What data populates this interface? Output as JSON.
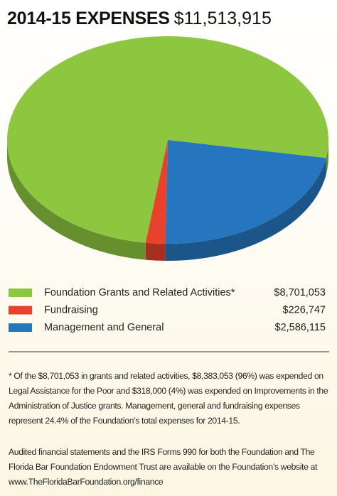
{
  "chart_data": {
    "type": "pie",
    "title": "2014-15 EXPENSES",
    "total_label": "$11,513,915",
    "categories": [
      "Foundation Grants and Related Activities*",
      "Fundraising",
      "Management and General"
    ],
    "values": [
      8701053,
      226747,
      2586115
    ],
    "value_labels": [
      "$8,701,053",
      "$226,747",
      "$2,586,115"
    ],
    "colors": [
      "#8dc63f",
      "#e8412c",
      "#2576be"
    ],
    "notes": [
      "* Of the $8,701,053 in grants and related activities, $8,383,053 (96%) was expended on Legal Assistance for the Poor and $318,000 (4%) was expended on Improvements in the Administration of Justice grants. Management, general and fundraising expenses represent 24.4% of the Foundation’s total expenses for 2014-15.",
      "Audited financial statements and the IRS Forms 990 for both the Foundation and The Florida Bar Foundation Endowment Trust are available on the Foundation’s website at www.TheFloridaBarFoundation.org/finance"
    ]
  }
}
